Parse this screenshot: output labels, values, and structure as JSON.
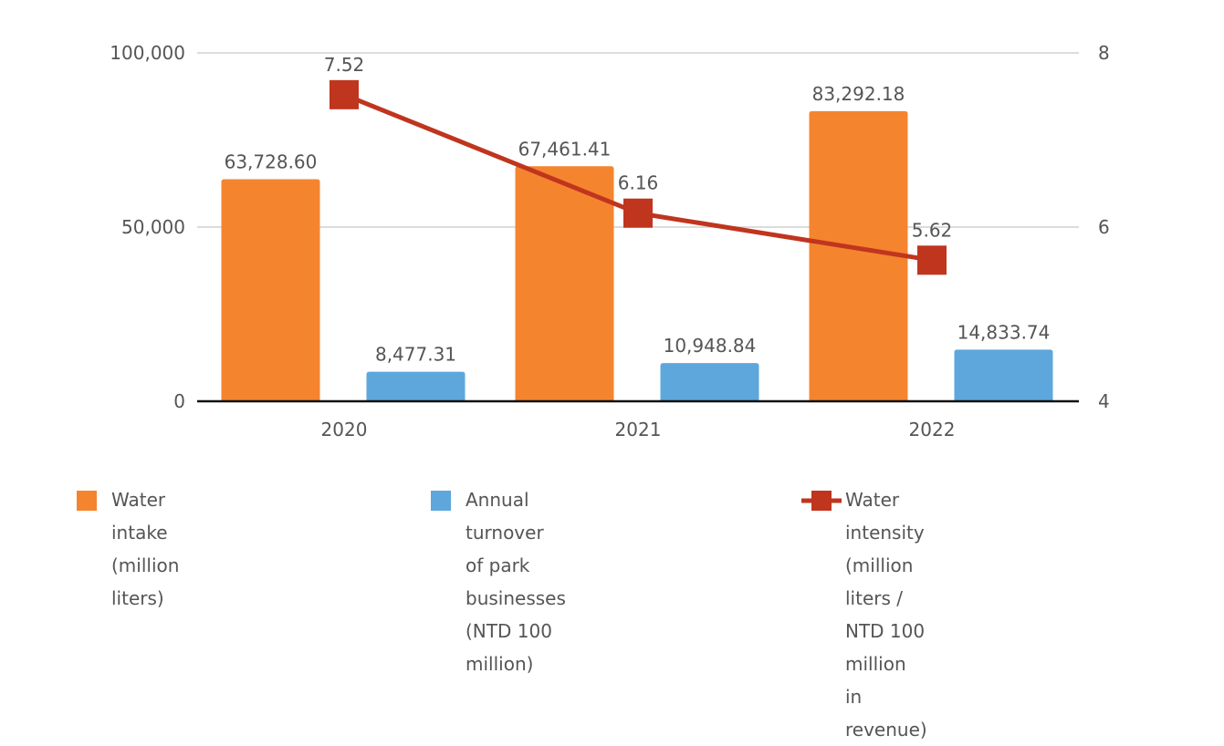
{
  "chart_data": {
    "type": "bar",
    "categories": [
      "2020",
      "2021",
      "2022"
    ],
    "series": [
      {
        "name": "Water intake (million liters)",
        "type": "bar",
        "axis": "left",
        "values": [
          63728.6,
          67461.41,
          83292.18
        ],
        "labels": [
          "63,728.60",
          "67,461.41",
          "83,292.18"
        ],
        "color": "#F5842F"
      },
      {
        "name": "Annual turnover of park businesses (NTD 100 million)",
        "type": "bar",
        "axis": "left",
        "values": [
          8477.31,
          10948.84,
          14833.74
        ],
        "labels": [
          "8,477.31",
          "10,948.84",
          "14,833.74"
        ],
        "color": "#5DA7DD"
      },
      {
        "name": "Water intensity (million liters / NTD 100 million in revenue)",
        "type": "line",
        "axis": "right",
        "values": [
          7.52,
          6.16,
          5.62
        ],
        "labels": [
          "7.52",
          "6.16",
          "5.62"
        ],
        "color": "#C0351E"
      }
    ],
    "y_left": {
      "min": 0,
      "max": 100000,
      "ticks": [
        0,
        50000,
        100000
      ],
      "tick_labels": [
        "0",
        "50,000",
        "100,000"
      ]
    },
    "y_right": {
      "min": 4,
      "max": 8,
      "ticks": [
        4,
        6,
        8
      ],
      "tick_labels": [
        "4",
        "6",
        "8"
      ]
    },
    "grid": true,
    "legend_position": "bottom"
  },
  "legend": {
    "water_intake": "Water intake (million liters)",
    "turnover_line1": "Annual turnover of park",
    "turnover_line2": "businesses (NTD 100 million)",
    "intensity_line1": "Water intensity (million liters /",
    "intensity_line2": "NTD 100 million in revenue)"
  }
}
